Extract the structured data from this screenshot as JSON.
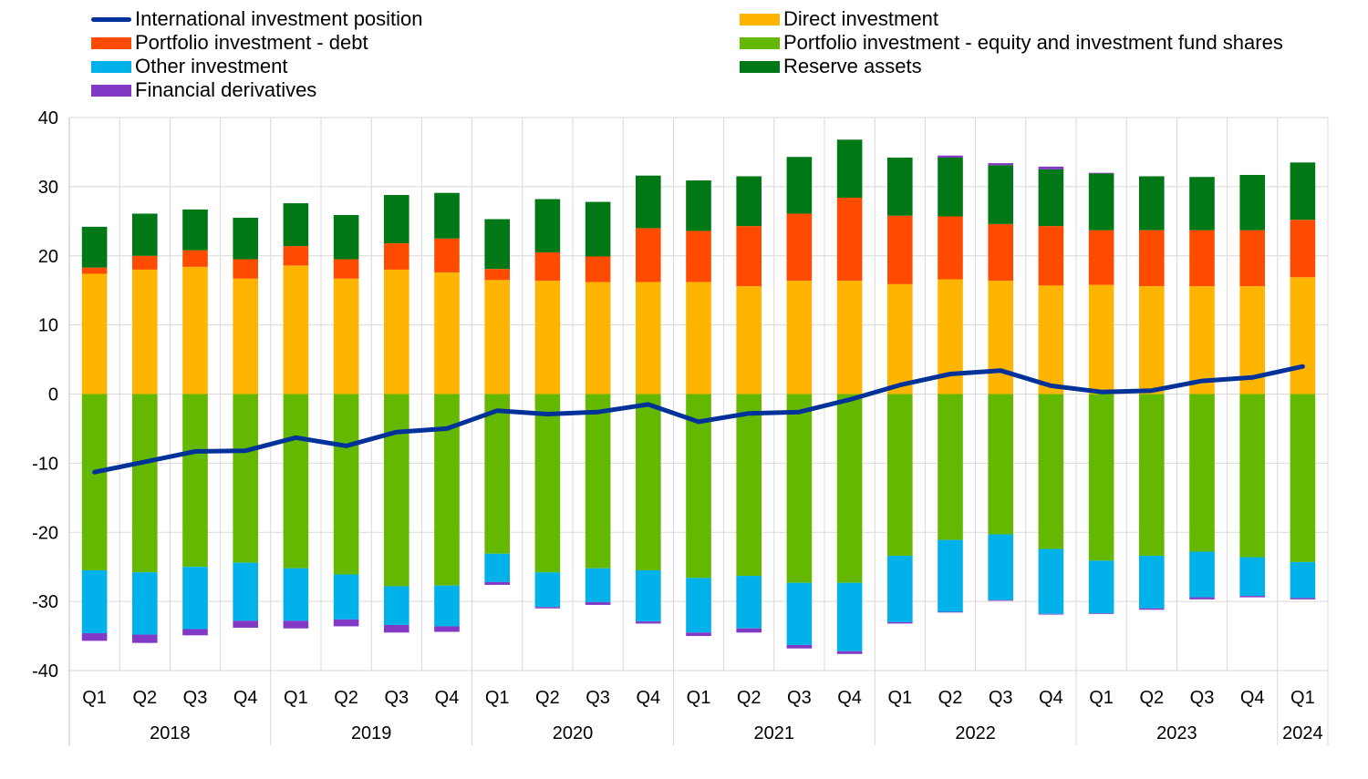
{
  "chart_data": {
    "type": "bar",
    "subtype": "stacked-bar-with-line",
    "ylim": [
      -40,
      40
    ],
    "yticks": [
      40,
      30,
      20,
      10,
      0,
      -10,
      -20,
      -30,
      -40
    ],
    "grid": true,
    "legend_position": "top",
    "categories": [
      "Q1",
      "Q2",
      "Q3",
      "Q4",
      "Q1",
      "Q2",
      "Q3",
      "Q4",
      "Q1",
      "Q2",
      "Q3",
      "Q4",
      "Q1",
      "Q2",
      "Q3",
      "Q4",
      "Q1",
      "Q2",
      "Q3",
      "Q4",
      "Q1",
      "Q2",
      "Q3",
      "Q4",
      "Q1"
    ],
    "year_groups": [
      {
        "label": "2018",
        "count": 4
      },
      {
        "label": "2019",
        "count": 4
      },
      {
        "label": "2020",
        "count": 4
      },
      {
        "label": "2021",
        "count": 4
      },
      {
        "label": "2022",
        "count": 4
      },
      {
        "label": "2023",
        "count": 4
      },
      {
        "label": "2024",
        "count": 1
      }
    ],
    "legend": [
      {
        "key": "iip",
        "label": "International investment position",
        "kind": "line",
        "color": "#003299"
      },
      {
        "key": "direct",
        "label": "Direct investment",
        "kind": "bar",
        "color": "#FFB400"
      },
      {
        "key": "pdebt",
        "label": "Portfolio investment - debt",
        "kind": "bar",
        "color": "#FF4B00"
      },
      {
        "key": "pequity",
        "label": "Portfolio investment - equity and investment fund shares",
        "kind": "bar",
        "color": "#65B800"
      },
      {
        "key": "other",
        "label": "Other investment",
        "kind": "bar",
        "color": "#00B1EA"
      },
      {
        "key": "reserve",
        "label": "Reserve assets",
        "kind": "bar",
        "color": "#007816"
      },
      {
        "key": "deriv",
        "label": "Financial derivatives",
        "kind": "bar",
        "color": "#8139C6"
      }
    ],
    "series": [
      {
        "key": "direct",
        "name": "Direct investment",
        "color": "#FFB400",
        "values": [
          17.4,
          18.0,
          18.4,
          16.7,
          18.6,
          16.7,
          18.0,
          17.6,
          16.5,
          16.4,
          16.2,
          16.2,
          16.2,
          15.6,
          16.4,
          16.4,
          15.9,
          16.6,
          16.4,
          15.7,
          15.8,
          15.6,
          15.6,
          15.6,
          16.9
        ]
      },
      {
        "key": "pdebt",
        "name": "Portfolio investment - debt",
        "color": "#FF4B00",
        "values": [
          0.9,
          2.0,
          2.4,
          2.8,
          2.8,
          2.8,
          3.8,
          4.9,
          1.6,
          4.1,
          3.7,
          7.8,
          7.4,
          8.7,
          9.7,
          12.0,
          9.9,
          9.1,
          8.2,
          8.6,
          7.9,
          8.1,
          8.1,
          8.1,
          8.3
        ]
      },
      {
        "key": "reserve",
        "name": "Reserve assets",
        "color": "#007816",
        "values": [
          5.9,
          6.1,
          5.9,
          6.0,
          6.2,
          6.4,
          7.0,
          6.6,
          7.2,
          7.7,
          7.9,
          7.6,
          7.3,
          7.2,
          8.2,
          8.4,
          8.4,
          8.5,
          8.5,
          8.2,
          8.2,
          7.8,
          7.7,
          8.0,
          8.3
        ]
      },
      {
        "key": "pequity",
        "name": "Portfolio investment - equity and investment fund shares",
        "color": "#65B800",
        "values": [
          -25.5,
          -25.8,
          -25.0,
          -24.4,
          -25.2,
          -26.1,
          -27.8,
          -27.7,
          -23.1,
          -25.8,
          -25.2,
          -25.5,
          -26.6,
          -26.3,
          -27.3,
          -27.3,
          -23.4,
          -21.1,
          -20.3,
          -22.4,
          -24.1,
          -23.4,
          -22.8,
          -23.6,
          -24.3
        ]
      },
      {
        "key": "other",
        "name": "Other investment",
        "color": "#00B1EA",
        "values": [
          -9.1,
          -9.0,
          -9.0,
          -8.4,
          -7.6,
          -6.5,
          -5.6,
          -5.9,
          -4.1,
          -5.0,
          -4.9,
          -7.4,
          -7.9,
          -7.6,
          -9.0,
          -9.9,
          -9.6,
          -10.4,
          -9.5,
          -9.4,
          -7.6,
          -7.6,
          -6.6,
          -5.6,
          -5.2
        ]
      },
      {
        "key": "deriv",
        "name": "Financial derivatives",
        "color": "#8139C6",
        "values": [
          -1.1,
          -1.2,
          -0.9,
          -1.0,
          -1.1,
          -1.0,
          -1.1,
          -0.8,
          -0.4,
          -0.2,
          -0.4,
          -0.3,
          -0.5,
          -0.6,
          -0.5,
          -0.4,
          -0.2,
          -0.1,
          -0.1,
          -0.1,
          -0.1,
          -0.2,
          -0.3,
          -0.2,
          -0.2
        ],
        "positive_values": [
          0,
          0,
          0,
          0,
          0,
          0,
          0,
          0,
          0,
          0,
          0,
          0,
          0,
          0,
          0,
          0,
          0,
          0.3,
          0.3,
          0.4,
          0.1,
          0,
          0,
          0,
          0
        ]
      },
      {
        "key": "iip",
        "name": "International investment position",
        "color": "#003299",
        "kind": "line",
        "values": [
          -11.3,
          -9.8,
          -8.3,
          -8.2,
          -6.3,
          -7.5,
          -5.5,
          -5.0,
          -2.4,
          -2.9,
          -2.6,
          -1.5,
          -4.0,
          -2.8,
          -2.6,
          -0.8,
          1.3,
          2.9,
          3.4,
          1.2,
          0.3,
          0.5,
          1.9,
          2.4,
          4.0
        ]
      }
    ]
  }
}
